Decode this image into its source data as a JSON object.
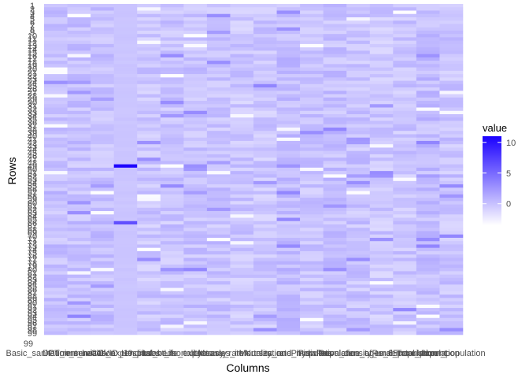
{
  "chart_data": {
    "type": "heatmap",
    "title": "",
    "xlabel": "Columns",
    "ylabel": "Rows",
    "columns": [
      "Basic_sanitation_services",
      "DPT_immunization",
      "Current_health_expenditure",
      "COVID_19_cases",
      "Hospital_beds",
      "Infant_mortality",
      "Life_expectancy",
      "Literacy_rate",
      "Measles_immunization",
      "Mortality_rate",
      "Nurses_and_midwives",
      "Physicians",
      "Population_density",
      "Population_ages_65",
      "Prevalence_of_undernourishment",
      "Rural_population",
      "Total_population",
      "Urban_population"
    ],
    "row_count": 99,
    "row_labels_visible": [
      "99"
    ],
    "value_range": [
      -3.5,
      11
    ],
    "highlights": [
      {
        "column": "COVID_19_cases",
        "row_fraction": 0.49,
        "value": 10.8
      },
      {
        "column": "COVID_19_cases",
        "row_fraction": 0.66,
        "value": 6.5
      }
    ],
    "grid": false,
    "legend": {
      "title": "value",
      "position": "right",
      "ticks": [
        10,
        5,
        0
      ],
      "low_color": "#ffffff",
      "high_color": "#1a00ff"
    },
    "panel_background": "#ebebeb"
  }
}
